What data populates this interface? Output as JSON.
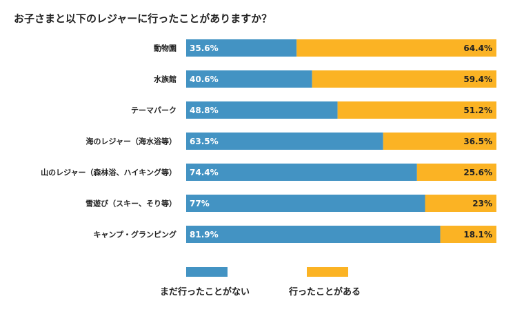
{
  "chart_data": {
    "type": "bar",
    "orientation": "horizontal",
    "stacked": true,
    "title": "お子さまと以下のレジャーに行ったことがありますか？",
    "categories": [
      "動物園",
      "水族館",
      "テーマパーク",
      "海のレジャー（海水浴等）",
      "山のレジャー（森林浴、ハイキング等）",
      "雪遊び（スキー、そり等）",
      "キャンプ・グランピング"
    ],
    "series": [
      {
        "name": "まだ行ったことがない",
        "color": "#4393C3",
        "values": [
          35.6,
          40.6,
          48.8,
          63.5,
          74.4,
          77,
          81.9
        ],
        "labels": [
          "35.6%",
          "40.6%",
          "48.8%",
          "63.5%",
          "74.4%",
          "77%",
          "81.9%"
        ]
      },
      {
        "name": "行ったことがある",
        "color": "#FBB324",
        "values": [
          64.4,
          59.4,
          51.2,
          36.5,
          25.6,
          23,
          18.1
        ],
        "labels": [
          "64.4%",
          "59.4%",
          "51.2%",
          "36.5%",
          "25.6%",
          "23%",
          "18.1%"
        ]
      }
    ],
    "xlim": [
      0,
      100
    ],
    "xlabel": "",
    "ylabel": "",
    "grid": false,
    "legend_position": "bottom"
  }
}
